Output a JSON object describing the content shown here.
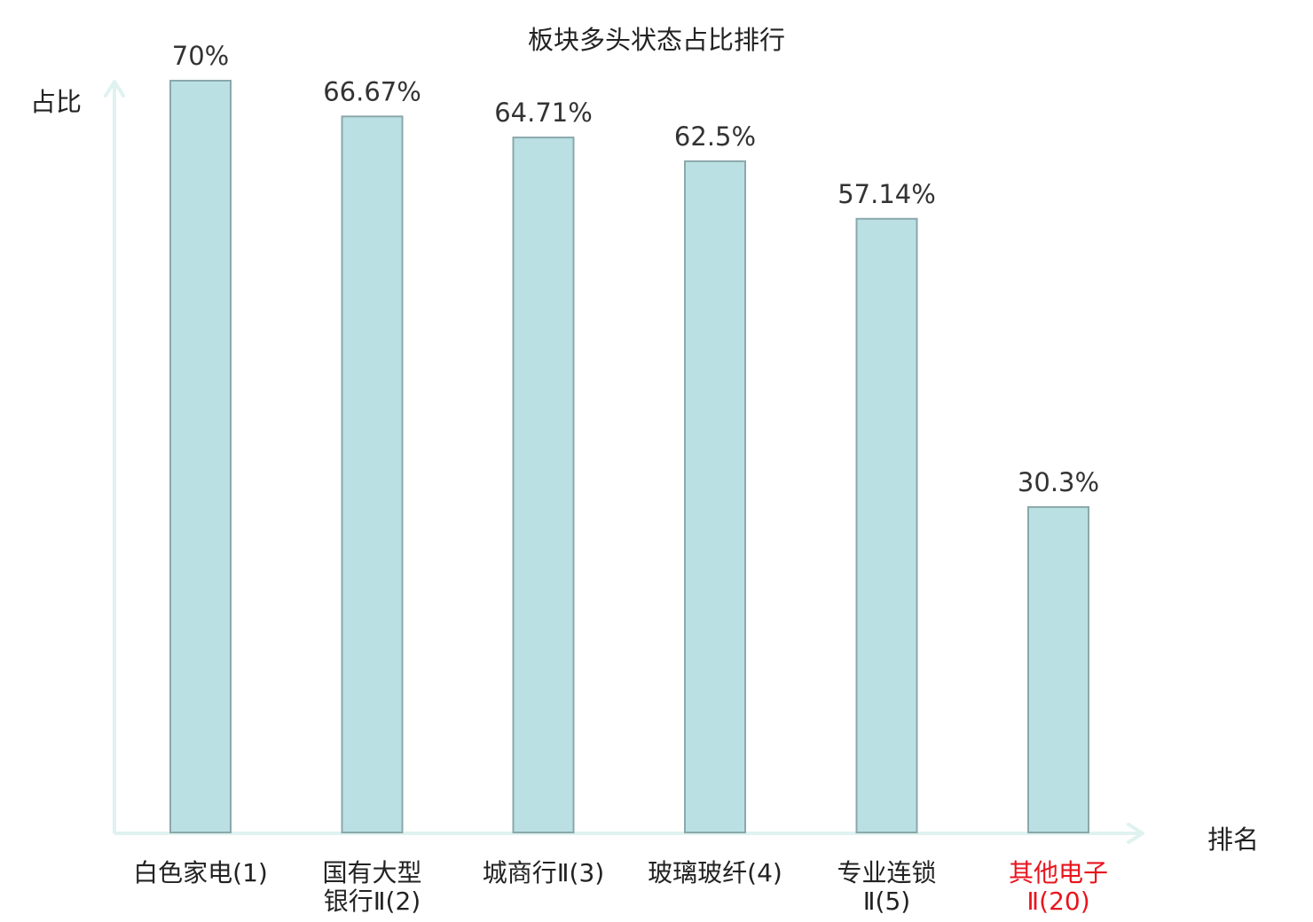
{
  "chart_data": {
    "type": "bar",
    "title": "板块多头状态占比排行",
    "ylabel": "占比",
    "xlabel": "排名",
    "ylim": [
      0,
      70
    ],
    "grid": false,
    "categories": [
      [
        "白色家电(1)"
      ],
      [
        "国有大型",
        "银行Ⅱ(2)"
      ],
      [
        "城商行Ⅱ(3)"
      ],
      [
        "玻璃玻纤(4)"
      ],
      [
        "专业连锁",
        "Ⅱ(5)"
      ],
      [
        "其他电子",
        "Ⅱ(20)"
      ]
    ],
    "values": [
      70,
      66.67,
      64.71,
      62.5,
      57.14,
      30.3
    ],
    "value_labels": [
      "70%",
      "66.67%",
      "64.71%",
      "62.5%",
      "57.14%",
      "30.3%"
    ],
    "highlight_index": 5,
    "colors": {
      "bar_fill": "#bbe0e3",
      "bar_stroke": "#8aa8ab",
      "axis": "#dff2ef",
      "text": "#222222",
      "value_text": "#333333",
      "highlight": "#e8141e"
    }
  }
}
